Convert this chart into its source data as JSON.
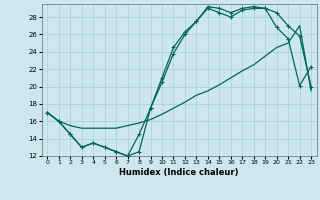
{
  "xlabel": "Humidex (Indice chaleur)",
  "xlim": [
    -0.5,
    23.5
  ],
  "ylim": [
    12,
    29.5
  ],
  "yticks": [
    12,
    14,
    16,
    18,
    20,
    22,
    24,
    26,
    28
  ],
  "xticks": [
    0,
    1,
    2,
    3,
    4,
    5,
    6,
    7,
    8,
    9,
    10,
    11,
    12,
    13,
    14,
    15,
    16,
    17,
    18,
    19,
    20,
    21,
    22,
    23
  ],
  "bg_color": "#cce8ee",
  "grid_color": "#aacfcc",
  "line_color": "#006655",
  "line1_x": [
    0,
    1,
    2,
    3,
    4,
    5,
    6,
    7,
    8,
    9,
    10,
    11,
    12,
    13,
    14,
    15,
    16,
    17,
    18,
    19,
    20,
    21,
    22,
    23
  ],
  "line1_y": [
    17,
    16,
    15.5,
    15.2,
    15.2,
    15.2,
    15.2,
    15.5,
    15.8,
    16.2,
    16.8,
    17.5,
    18.2,
    19,
    19.5,
    20.2,
    21,
    21.8,
    22.5,
    23.5,
    24.5,
    25,
    27,
    19.5
  ],
  "line2_x": [
    0,
    1,
    2,
    3,
    4,
    5,
    6,
    7,
    8,
    9,
    10,
    11,
    12,
    13,
    14,
    15,
    16,
    17,
    18,
    19,
    20,
    21,
    22,
    23
  ],
  "line2_y": [
    17,
    16,
    14.5,
    13,
    13.5,
    13,
    12.5,
    12,
    12.5,
    17.5,
    21,
    24.5,
    26.3,
    27.5,
    29.2,
    29,
    28.5,
    29,
    29.2,
    29,
    28.5,
    27,
    25.8,
    20
  ],
  "line3_x": [
    0,
    1,
    2,
    3,
    4,
    5,
    6,
    7,
    8,
    9,
    10,
    11,
    12,
    13,
    14,
    15,
    16,
    17,
    18,
    19,
    20,
    21,
    22,
    23
  ],
  "line3_y": [
    17,
    16,
    14.5,
    13,
    13.5,
    13,
    12.5,
    12,
    14.5,
    17.5,
    20.5,
    23.8,
    26,
    27.5,
    29,
    28.5,
    28,
    28.8,
    29,
    29,
    26.8,
    25.5,
    20.1,
    22.3
  ]
}
